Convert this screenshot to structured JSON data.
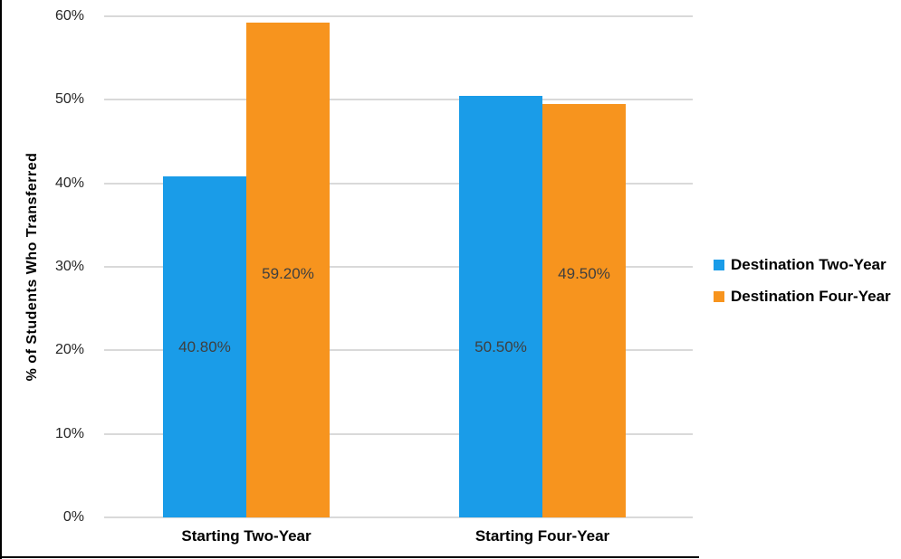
{
  "chart_data": {
    "type": "bar",
    "title": "",
    "categories": [
      "Starting Two-Year",
      "Starting Four-Year"
    ],
    "series": [
      {
        "name": "Destination Two-Year",
        "color": "#1A9CE8",
        "values": [
          40.8,
          50.5
        ],
        "data_labels": [
          "40.80%",
          "50.50%"
        ]
      },
      {
        "name": "Destination Four-Year",
        "color": "#F7941E",
        "values": [
          59.2,
          49.5
        ],
        "data_labels": [
          "59.20%",
          "49.50%"
        ]
      }
    ],
    "xlabel": "",
    "ylabel": "% of Students Who Transferred",
    "ylim": [
      0,
      60
    ],
    "yticks": [
      0,
      10,
      20,
      30,
      40,
      50,
      60
    ],
    "ytick_labels": [
      "0%",
      "10%",
      "20%",
      "30%",
      "40%",
      "50%",
      "60%"
    ],
    "grid": true,
    "legend_position": "right"
  },
  "colors": {
    "gridline": "#D9D9D9",
    "tick_label": "#262626",
    "data_label": "#3F3F3F",
    "border": "#000000"
  }
}
